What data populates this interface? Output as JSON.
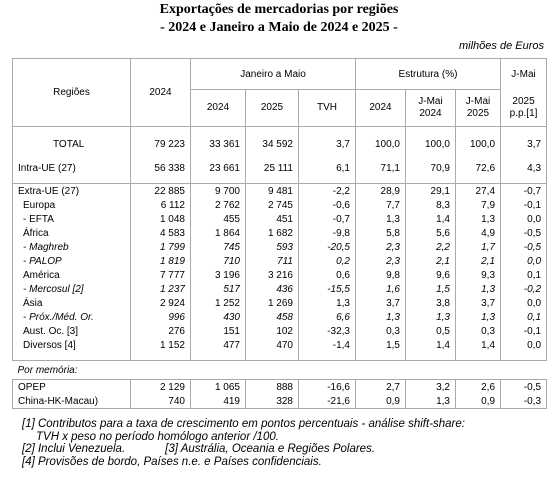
{
  "header": {
    "title": "Exportações de mercadorias por regiões",
    "subtitle": "- 2024 e Janeiro a Maio de 2024 e 2025 -",
    "unit": "milhões de Euros"
  },
  "table": {
    "head_top": [
      "Regiões",
      "2024",
      "Janeiro a Maio",
      "Estrutura (%)",
      "J-Mai"
    ],
    "head_sub": [
      "2024",
      "2025",
      "TVH",
      "2024",
      "J-Mai 2024",
      "J-Mai 2025",
      "2025 p.p.[1]"
    ],
    "rows": [
      [
        "TOTAL",
        "79 223",
        "33 361",
        "34 592",
        "3,7",
        "100,0",
        "100,0",
        "100,0",
        "3,7"
      ],
      [
        "Intra-UE (27)",
        "56 338",
        "23 661",
        "25 111",
        "6,1",
        "71,1",
        "70,9",
        "72,6",
        "4,3"
      ],
      [
        "Extra-UE (27)",
        "22 885",
        "9 700",
        "9 481",
        "-2,2",
        "28,9",
        "29,1",
        "27,4",
        "-0,7"
      ],
      [
        "Europa",
        "6 112",
        "2 762",
        "2 745",
        "-0,6",
        "7,7",
        "8,3",
        "7,9",
        "-0,1"
      ],
      [
        "- EFTA",
        "1 048",
        "455",
        "451",
        "-0,7",
        "1,3",
        "1,4",
        "1,3",
        "0,0"
      ],
      [
        "África",
        "4 583",
        "1 864",
        "1 682",
        "-9,8",
        "5,8",
        "5,6",
        "4,9",
        "-0,5"
      ],
      [
        "- Maghreb",
        "1 799",
        "745",
        "593",
        "-20,5",
        "2,3",
        "2,2",
        "1,7",
        "-0,5"
      ],
      [
        "- PALOP",
        "1 819",
        "710",
        "711",
        "0,2",
        "2,3",
        "2,1",
        "2,1",
        "0,0"
      ],
      [
        "América",
        "7 777",
        "3 196",
        "3 216",
        "0,6",
        "9,8",
        "9,6",
        "9,3",
        "0,1"
      ],
      [
        "- Mercosul [2]",
        "1 237",
        "517",
        "436",
        "-15,5",
        "1,6",
        "1,5",
        "1,3",
        "-0,2"
      ],
      [
        "Ásia",
        "2 924",
        "1 252",
        "1 269",
        "1,3",
        "3,7",
        "3,8",
        "3,7",
        "0,0"
      ],
      [
        "- Próx./Méd. Or.",
        "996",
        "430",
        "458",
        "6,6",
        "1,3",
        "1,3",
        "1,3",
        "0,1"
      ],
      [
        "Aust. Oc. [3]",
        "276",
        "151",
        "102",
        "-32,3",
        "0,3",
        "0,5",
        "0,3",
        "-0,1"
      ],
      [
        "Diversos [4]",
        "1 152",
        "477",
        "470",
        "-1,4",
        "1,5",
        "1,4",
        "1,4",
        "0,0"
      ]
    ],
    "memo_label": "Por memória:",
    "memo_rows": [
      [
        "OPEP",
        "2 129",
        "1 065",
        "888",
        "-16,6",
        "2,7",
        "3,2",
        "2,6",
        "-0,5"
      ],
      [
        "China-HK-Macau)",
        "740",
        "419",
        "328",
        "-21,6",
        "0,9",
        "1,3",
        "0,9",
        "-0,3"
      ]
    ]
  },
  "footnotes": [
    "[1] Contributos para a taxa de crescimento em pontos percentuais - análise shift-share:",
    "TVH x peso no período homólogo anterior /100.",
    "[2] Inclui Venezuela.",
    "[3] Austrália, Oceania e Regiões Polares.",
    "[4] Provisões de bordo, Países n.e. e Países confidenciais."
  ]
}
